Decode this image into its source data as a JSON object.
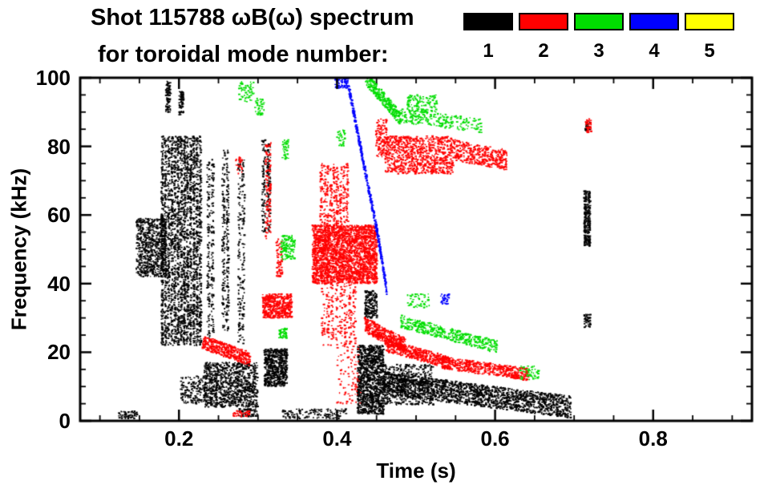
{
  "chart_data": {
    "type": "scatter",
    "title_line1": "Shot 115788 ωB(ω) spectrum",
    "title_line2": "for toroidal mode number:",
    "xlabel": "Time (s)",
    "ylabel": "Frequency (kHz)",
    "background": "#ffffff",
    "axis_color": "#000000",
    "xlim": [
      0.075,
      0.925
    ],
    "ylim": [
      0,
      100
    ],
    "xticks": [
      {
        "v": 0.2,
        "label": "0.2"
      },
      {
        "v": 0.4,
        "label": "0.4"
      },
      {
        "v": 0.6,
        "label": "0.6"
      },
      {
        "v": 0.8,
        "label": "0.8"
      }
    ],
    "xminor_step": 0.05,
    "yticks": [
      {
        "v": 0,
        "label": "0"
      },
      {
        "v": 20,
        "label": "20"
      },
      {
        "v": 40,
        "label": "40"
      },
      {
        "v": 60,
        "label": "60"
      },
      {
        "v": 80,
        "label": "80"
      },
      {
        "v": 100,
        "label": "100"
      }
    ],
    "yminor_step": 5,
    "legend": {
      "items": [
        {
          "label": "1",
          "color": "#000000"
        },
        {
          "label": "2",
          "color": "#ff0000"
        },
        {
          "label": "3",
          "color": "#00dd00"
        },
        {
          "label": "4",
          "color": "#0000ff"
        },
        {
          "label": "5",
          "color": "#ffff00"
        }
      ]
    },
    "series": [
      {
        "name": "toroidal mode n=1",
        "color": "#000000",
        "clusters": [
          {
            "t": [
              0.146,
              0.184
            ],
            "f": [
              42,
              59
            ],
            "n": 700
          },
          {
            "t": [
              0.177,
              0.229
            ],
            "f": [
              22,
              83
            ],
            "n": 2600,
            "cols": 13
          },
          {
            "t": [
              0.182,
              0.191
            ],
            "f": [
              90,
              99
            ],
            "n": 90,
            "cols": 1
          },
          {
            "t": [
              0.199,
              0.207
            ],
            "f": [
              89,
              96
            ],
            "n": 70,
            "cols": 1
          },
          {
            "t": [
              0.235,
              0.245
            ],
            "f": [
              24,
              77
            ],
            "n": 220,
            "cols": 2
          },
          {
            "t": [
              0.254,
              0.264
            ],
            "f": [
              26,
              79
            ],
            "n": 230,
            "cols": 2
          },
          {
            "t": [
              0.274,
              0.284
            ],
            "f": [
              22,
              76
            ],
            "n": 190,
            "cols": 2
          },
          {
            "t": [
              0.304,
              0.317
            ],
            "f": [
              55,
              82
            ],
            "n": 180,
            "cols": 2
          },
          {
            "t": [
              0.232,
              0.3
            ],
            "f": [
              4,
              17
            ],
            "n": 950
          },
          {
            "t": [
              0.202,
              0.235
            ],
            "f": [
              5,
              13
            ],
            "n": 160
          },
          {
            "t": [
              0.308,
              0.337
            ],
            "f": [
              10,
              21
            ],
            "n": 600
          },
          {
            "t": [
              0.124,
              0.148
            ],
            "f": [
              0.7,
              2.8
            ],
            "n": 55
          },
          {
            "t": [
              0.276,
              0.3
            ],
            "f": [
              1.2,
              3.5
            ],
            "n": 70
          },
          {
            "t": [
              0.331,
              0.412
            ],
            "f": [
              0.7,
              3.5
            ],
            "n": 130
          },
          {
            "t": [
              0.426,
              0.459
            ],
            "f": [
              2,
              22
            ],
            "n": 1100
          },
          {
            "kind": "band",
            "t": [
              0.459,
              0.696
            ],
            "f": [
              11,
              4
            ],
            "w": 3.2,
            "n": 1700
          },
          {
            "t": [
              0.459,
              0.522
            ],
            "f": [
              4.7,
              16.4
            ],
            "n": 500
          },
          {
            "t": [
              0.435,
              0.451
            ],
            "f": [
              30,
              38
            ],
            "n": 180
          },
          {
            "t": [
              0.712,
              0.721
            ],
            "f": [
              51,
              67
            ],
            "n": 300,
            "cols": 2
          },
          {
            "t": [
              0.713,
              0.721
            ],
            "f": [
              27,
              31
            ],
            "n": 45
          },
          {
            "t": [
              0.714,
              0.72
            ],
            "f": [
              84.5,
              87
            ],
            "n": 22
          }
        ]
      },
      {
        "name": "toroidal mode n=2",
        "color": "#ff0000",
        "clusters": [
          {
            "kind": "band",
            "t": [
              0.23,
              0.29
            ],
            "f": [
              23,
              18
            ],
            "w": 2,
            "n": 420
          },
          {
            "t": [
              0.306,
              0.343
            ],
            "f": [
              30,
              37
            ],
            "n": 480
          },
          {
            "t": [
              0.309,
              0.317
            ],
            "f": [
              53,
              81
            ],
            "n": 110,
            "cols": 2
          },
          {
            "t": [
              0.323,
              0.331
            ],
            "f": [
              42,
              53
            ],
            "n": 70
          },
          {
            "t": [
              0.369,
              0.451
            ],
            "f": [
              40,
              57
            ],
            "n": 2400
          },
          {
            "t": [
              0.378,
              0.415
            ],
            "f": [
              57,
              75
            ],
            "n": 350,
            "cols": 9
          },
          {
            "t": [
              0.38,
              0.425
            ],
            "f": [
              22,
              40
            ],
            "n": 260,
            "cols": 8
          },
          {
            "kind": "band",
            "t": [
              0.435,
              0.486
            ],
            "f": [
              28,
              22
            ],
            "w": 2.2,
            "n": 420
          },
          {
            "kind": "band",
            "t": [
              0.461,
              0.542
            ],
            "f": [
              22,
              17
            ],
            "w": 1.8,
            "n": 420
          },
          {
            "kind": "band",
            "t": [
              0.532,
              0.643
            ],
            "f": [
              17,
              13.5
            ],
            "w": 1.8,
            "n": 550
          },
          {
            "t": [
              0.461,
              0.547
            ],
            "f": [
              72,
              83
            ],
            "n": 850
          },
          {
            "kind": "band",
            "t": [
              0.547,
              0.615
            ],
            "f": [
              79,
              76
            ],
            "w": 3,
            "n": 380
          },
          {
            "t": [
              0.449,
              0.463
            ],
            "f": [
              77,
              88
            ],
            "n": 130
          },
          {
            "t": [
              0.714,
              0.722
            ],
            "f": [
              84,
              88
            ],
            "n": 40
          },
          {
            "t": [
              0.268,
              0.29
            ],
            "f": [
              1.2,
              3
            ],
            "n": 40
          },
          {
            "t": [
              0.4,
              0.43
            ],
            "f": [
              5,
              22
            ],
            "n": 90
          },
          {
            "t": [
              0.272,
              0.28
            ],
            "f": [
              72,
              77
            ],
            "n": 25
          }
        ]
      },
      {
        "name": "toroidal mode n=3",
        "color": "#00dd00",
        "clusters": [
          {
            "t": [
              0.276,
              0.295
            ],
            "f": [
              93,
              99
            ],
            "n": 60
          },
          {
            "t": [
              0.296,
              0.308
            ],
            "f": [
              89,
              94
            ],
            "n": 40
          },
          {
            "t": [
              0.329,
              0.347
            ],
            "f": [
              47,
              54
            ],
            "n": 130
          },
          {
            "t": [
              0.327,
              0.337
            ],
            "f": [
              24,
              27
            ],
            "n": 45
          },
          {
            "t": [
              0.331,
              0.339
            ],
            "f": [
              76,
              82
            ],
            "n": 40
          },
          {
            "kind": "band",
            "t": [
              0.436,
              0.481
            ],
            "f": [
              100,
              88
            ],
            "w": 2,
            "n": 300
          },
          {
            "kind": "band",
            "t": [
              0.481,
              0.583
            ],
            "f": [
              89,
              86
            ],
            "w": 2,
            "n": 220
          },
          {
            "t": [
              0.489,
              0.527
            ],
            "f": [
              90,
              95
            ],
            "n": 120
          },
          {
            "kind": "band",
            "t": [
              0.481,
              0.603
            ],
            "f": [
              29,
              21.5
            ],
            "w": 1.8,
            "n": 420
          },
          {
            "t": [
              0.489,
              0.517
            ],
            "f": [
              33,
              37
            ],
            "n": 50
          },
          {
            "t": [
              0.631,
              0.656
            ],
            "f": [
              12,
              16
            ],
            "n": 55
          },
          {
            "t": [
              0.4,
              0.41
            ],
            "f": [
              80,
              85
            ],
            "n": 35
          }
        ]
      },
      {
        "name": "toroidal mode n=4",
        "color": "#0000ff",
        "clusters": [
          {
            "t": [
              0.398,
              0.415
            ],
            "f": [
              97,
              100
            ],
            "n": 70
          },
          {
            "kind": "band",
            "t": [
              0.415,
              0.451
            ],
            "f": [
              97,
              55
            ],
            "w": 1.3,
            "n": 300
          },
          {
            "kind": "band",
            "t": [
              0.451,
              0.463
            ],
            "f": [
              55,
              38
            ],
            "w": 1.3,
            "n": 130
          },
          {
            "t": [
              0.53,
              0.542
            ],
            "f": [
              34,
              37
            ],
            "n": 35
          }
        ]
      },
      {
        "name": "toroidal mode n=5",
        "color": "#ffff00",
        "clusters": []
      }
    ]
  }
}
